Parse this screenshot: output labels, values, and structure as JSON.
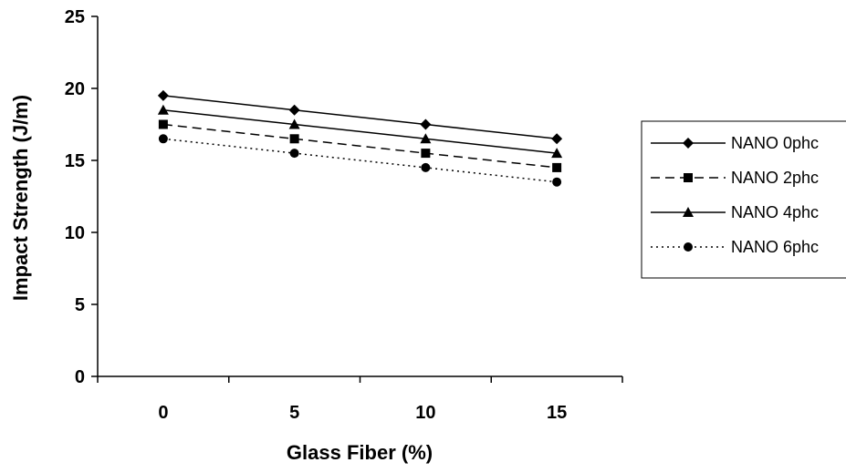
{
  "chart_data": {
    "type": "line",
    "title": "",
    "xlabel": "Glass Fiber (%)",
    "ylabel": "Impact Strength (J/m)",
    "x": [
      0,
      5,
      10,
      15
    ],
    "x_tick_labels": [
      "0",
      "5",
      "10",
      "15"
    ],
    "ylim": [
      0,
      25
    ],
    "y_ticks": [
      0,
      5,
      10,
      15,
      20,
      25
    ],
    "grid": false,
    "legend_position": "right",
    "series": [
      {
        "name": "NANO 0phc",
        "values": [
          19.5,
          18.5,
          17.5,
          16.5
        ],
        "marker": "diamond",
        "line": "solid"
      },
      {
        "name": "NANO 2phc",
        "values": [
          17.5,
          16.5,
          15.5,
          14.5
        ],
        "marker": "square",
        "line": "dashed"
      },
      {
        "name": "NANO 4phc",
        "values": [
          18.5,
          17.5,
          16.5,
          15.5
        ],
        "marker": "triangle",
        "line": "solid"
      },
      {
        "name": "NANO 6phc",
        "values": [
          16.5,
          15.5,
          14.5,
          13.5
        ],
        "marker": "circle",
        "line": "dotted"
      }
    ]
  }
}
